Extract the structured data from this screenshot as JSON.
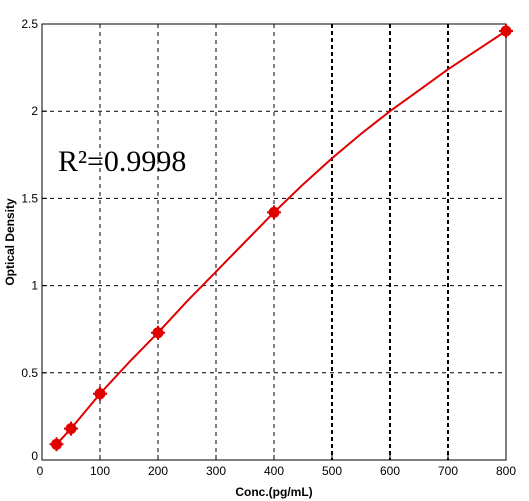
{
  "chart_data": {
    "type": "scatter",
    "xlabel": "Conc.(pg/mL)",
    "ylabel": "Optical Density",
    "xlim": [
      0,
      800
    ],
    "ylim": [
      0,
      2.5
    ],
    "grid": true,
    "x_ticks": [
      "0",
      "100",
      "200",
      "300",
      "400",
      "500",
      "600",
      "700",
      "800"
    ],
    "y_ticks": [
      "0",
      "0.5",
      "1",
      "1.5",
      "2",
      "2.5"
    ],
    "annotation": {
      "text": "R²=0.9998"
    },
    "colors": {
      "series": "#e00000",
      "grid": "#000000"
    },
    "series": [
      {
        "x": [
          25,
          50,
          100,
          200,
          400,
          800
        ],
        "y": [
          0.09,
          0.18,
          0.38,
          0.73,
          1.42,
          2.46
        ]
      }
    ],
    "fit_curve": {
      "x": [
        25,
        50,
        100,
        150,
        200,
        250,
        300,
        350,
        400,
        450,
        500,
        550,
        600,
        650,
        700,
        750,
        800
      ],
      "y": [
        0.09,
        0.18,
        0.38,
        0.56,
        0.73,
        0.91,
        1.08,
        1.25,
        1.42,
        1.58,
        1.73,
        1.87,
        2.0,
        2.12,
        2.24,
        2.35,
        2.46
      ]
    }
  }
}
